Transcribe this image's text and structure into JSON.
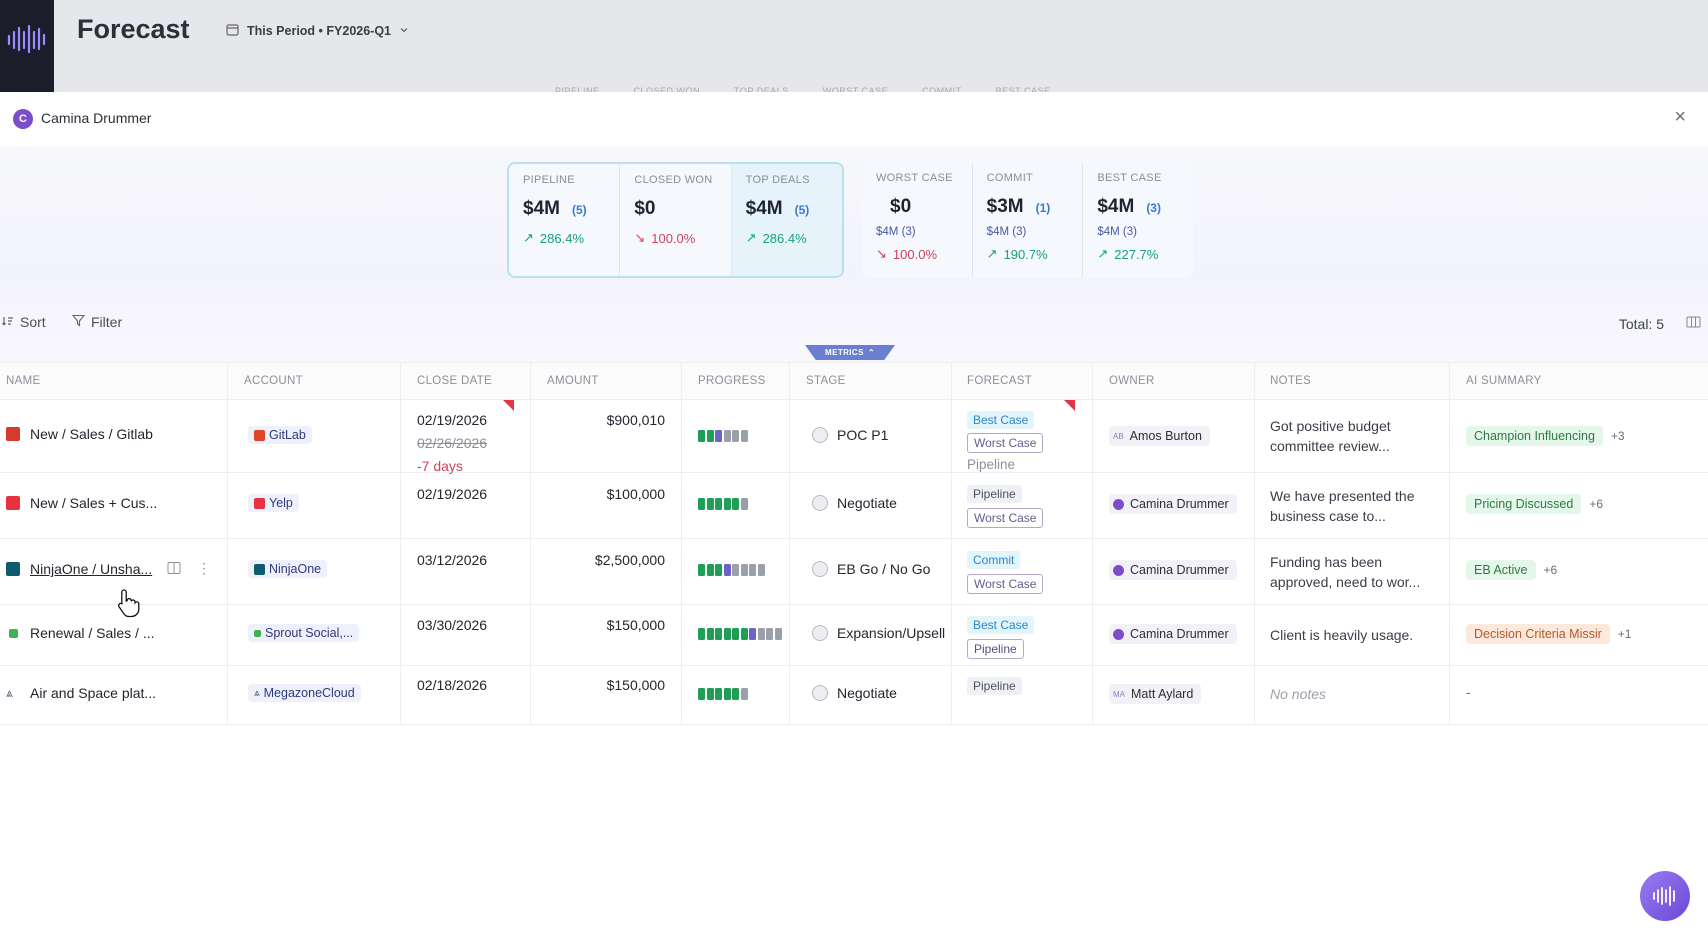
{
  "app": {
    "title": "Forecast",
    "period_label": "This Period • FY2026-Q1"
  },
  "background_tabs": [
    "PIPELINE",
    "CLOSED WON",
    "TOP DEALS",
    "WORST CASE",
    "COMMIT",
    "BEST CASE"
  ],
  "panel": {
    "owner_initial": "C",
    "owner_name": "Camina Drummer",
    "close_label": "×"
  },
  "metrics": {
    "pipeline": {
      "label": "PIPELINE",
      "value": "$4M",
      "count": "(5)",
      "trend": "286.4%"
    },
    "closed_won": {
      "label": "CLOSED WON",
      "value": "$0",
      "trend": "100.0%"
    },
    "top_deals": {
      "label": "TOP DEALS",
      "value": "$4M",
      "count": "(5)",
      "trend": "286.4%"
    },
    "worst_case": {
      "label": "WORST CASE",
      "value": "$0",
      "sub": "$4M (3)",
      "trend": "100.0%"
    },
    "commit": {
      "label": "COMMIT",
      "value": "$3M",
      "count": "(1)",
      "sub": "$4M (3)",
      "trend": "190.7%"
    },
    "best_case": {
      "label": "BEST CASE",
      "value": "$4M",
      "count": "(3)",
      "sub": "$4M (3)",
      "trend": "227.7%"
    },
    "toggle_label": "METRICS"
  },
  "toolbar": {
    "sort_label": "Sort",
    "filter_label": "Filter",
    "total_label": "Total: 5"
  },
  "columns": [
    "NAME",
    "ACCOUNT",
    "CLOSE DATE",
    "AMOUNT",
    "PROGRESS",
    "STAGE",
    "FORECAST",
    "OWNER",
    "NOTES",
    "AI SUMMARY"
  ],
  "rows": [
    {
      "name": "New / Sales / Gitlab",
      "icon_color": "#d63a2f",
      "account": "GitLab",
      "account_icon_color": "#e24329",
      "close_date": "02/19/2026",
      "old_date": "02/26/2026",
      "date_diff": "-7 days",
      "amount": "$900,010",
      "progress": 0.5,
      "stage": "POC P1",
      "forecast": [
        "Best Case",
        "Worst Case",
        "Pipeline"
      ],
      "owner": "Amos Burton",
      "notes": "Got positive budget committee review...",
      "ai_tag": "Champion Influencing",
      "ai_more": "+3"
    },
    {
      "name": "New / Sales + Cus...",
      "icon_color": "#e8323f",
      "account": "Yelp",
      "account_icon_color": "#e8323f",
      "close_date": "02/19/2026",
      "amount": "$100,000",
      "progress": 0.83,
      "stage": "Negotiate",
      "forecast": [
        "Pipeline",
        "Worst Case"
      ],
      "owner": "Camina Drummer",
      "notes": "We have presented the business case to...",
      "ai_tag": "Pricing Discussed",
      "ai_more": "+6"
    },
    {
      "name": "NinjaOne / Unsha...",
      "icon_color": "#0e5a6e",
      "account": "NinjaOne",
      "account_icon_color": "#0e5a6e",
      "close_date": "03/12/2026",
      "amount": "$2,500,000",
      "progress": 0.5,
      "stage": "EB Go / No Go",
      "forecast": [
        "Commit",
        "Worst Case"
      ],
      "owner": "Camina Drummer",
      "notes": "Funding has been approved, need to wor...",
      "ai_tag": "EB Active",
      "ai_more": "+6"
    },
    {
      "name": "Renewal / Sales / ...",
      "icon_color": "#3fb34f",
      "account": "Sprout Social,...",
      "account_icon_color": "#3fb34f",
      "close_date": "03/30/2026",
      "amount": "$150,000",
      "progress": 0.7,
      "stage": "Expansion/Upsell",
      "forecast": [
        "Best Case",
        "Pipeline"
      ],
      "owner": "Camina Drummer",
      "notes": "Client is heavily usage.",
      "ai_tag": "Decision Criteria Missir",
      "ai_more": "+1"
    },
    {
      "name": "Air and Space plat...",
      "icon_color": "#4a5068",
      "account": "MegazoneCloud",
      "account_icon_color": "#4a5068",
      "close_date": "02/18/2026",
      "amount": "$150,000",
      "progress": 0.83,
      "stage": "Negotiate",
      "forecast": [
        "Pipeline"
      ],
      "owner": "Matt Aylard",
      "notes": "No notes",
      "ai_tag": "-"
    }
  ]
}
